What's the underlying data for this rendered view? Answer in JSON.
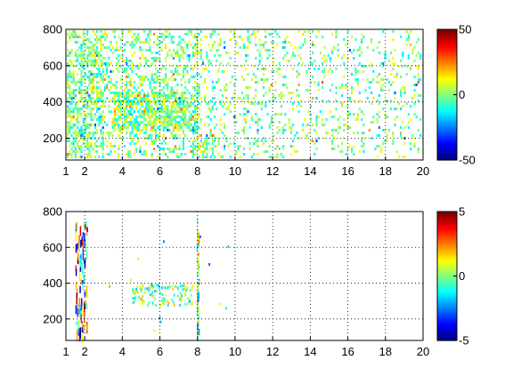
{
  "figure": {
    "background": "#ffffff",
    "colormap": "jet"
  },
  "chart_data": [
    {
      "type": "heatmap",
      "title": "",
      "xlabel": "",
      "ylabel": "",
      "xlim": [
        1,
        20
      ],
      "ylim": [
        80,
        800
      ],
      "grid": true,
      "x_ticks": [
        1,
        2,
        4,
        6,
        8,
        10,
        12,
        14,
        16,
        18,
        20
      ],
      "y_ticks": [
        200,
        400,
        600,
        800
      ],
      "clim": [
        -50,
        50
      ],
      "colorbar_ticks": [
        -50,
        0,
        50
      ],
      "density": "dense",
      "pattern": "scattered small rectangles covering most of the plane; densest near x=1.5–3 and in a band near x=4–8, y=250–450; mostly values near 0 (cyan/green/yellow)"
    },
    {
      "type": "heatmap",
      "title": "",
      "xlabel": "",
      "ylabel": "",
      "xlim": [
        1,
        20
      ],
      "ylim": [
        80,
        800
      ],
      "grid": true,
      "x_ticks": [
        1,
        2,
        4,
        6,
        8,
        10,
        12,
        14,
        16,
        18,
        20
      ],
      "y_ticks": [
        200,
        400,
        600,
        800
      ],
      "clim": [
        -5,
        5
      ],
      "colorbar_ticks": [
        -5,
        0,
        5
      ],
      "density": "sparse",
      "pattern": "very sparse; thin vertical streaks near x=1.5–2 spanning y=100–750, a cluster near x=4.5–7.5, y=280–400, and a vertical streak at x=8"
    }
  ]
}
